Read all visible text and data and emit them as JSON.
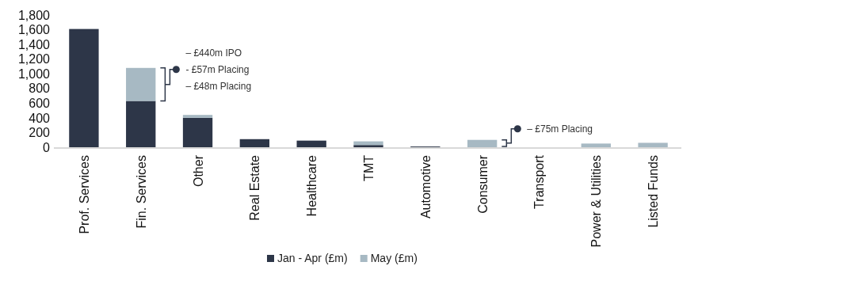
{
  "chart_data": {
    "type": "bar",
    "stacked": true,
    "categories": [
      "Prof. Services",
      "Fin. Services",
      "Other",
      "Real Estate",
      "Healthcare",
      "TMT",
      "Automotive",
      "Consumer",
      "Transport",
      "Power & Utilities",
      "Listed Funds"
    ],
    "series": [
      {
        "name": "Jan - Apr (£m)",
        "color": "#2d3648",
        "values": [
          1610,
          630,
          400,
          110,
          90,
          30,
          10,
          0,
          0,
          0,
          0
        ]
      },
      {
        "name": "May (£m)",
        "color": "#a7b9c3",
        "values": [
          0,
          450,
          40,
          0,
          0,
          50,
          0,
          100,
          0,
          50,
          60
        ]
      }
    ],
    "ylim": [
      0,
      1800
    ],
    "yticks": [
      {
        "value": 0,
        "label": "0"
      },
      {
        "value": 200,
        "label": "200"
      },
      {
        "value": 400,
        "label": "400"
      },
      {
        "value": 600,
        "label": "600"
      },
      {
        "value": 800,
        "label": "800"
      },
      {
        "value": 1000,
        "label": "1,000"
      },
      {
        "value": 1200,
        "label": "1,200"
      },
      {
        "value": 1400,
        "label": "1,400"
      },
      {
        "value": 1600,
        "label": "1,600"
      },
      {
        "value": 1800,
        "label": "1,800"
      }
    ],
    "grid": false,
    "legend": "bottom",
    "annotations": [
      "– £440m IPO",
      "- £57m Placing",
      "– £48m Placing",
      "– £75m Placing"
    ]
  }
}
